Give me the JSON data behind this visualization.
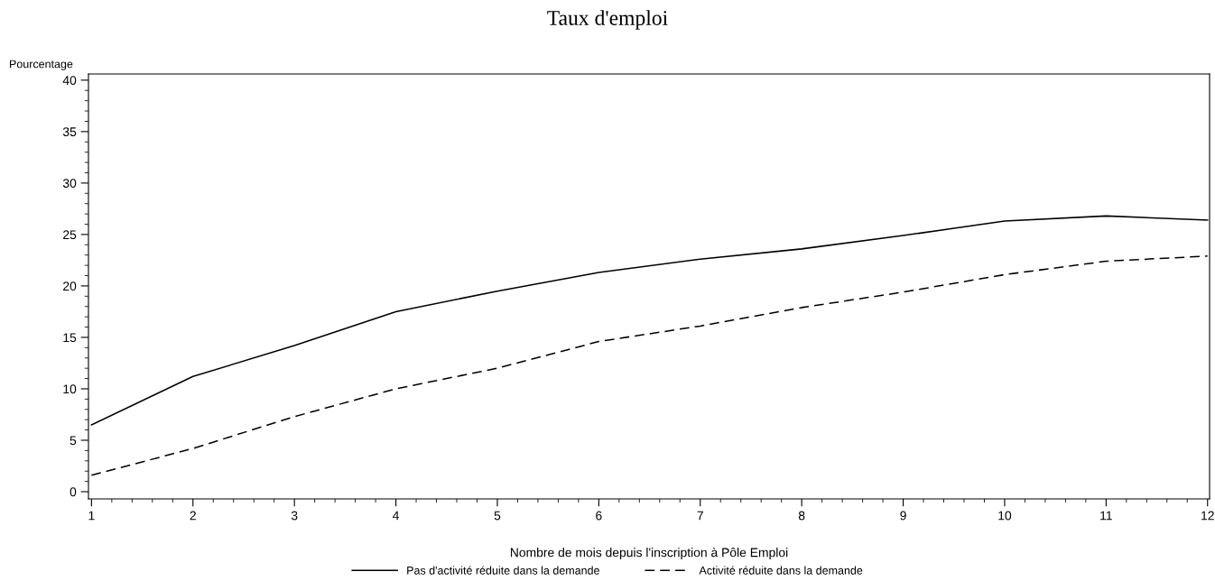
{
  "chart_data": {
    "type": "line",
    "title": "Taux d'emploi",
    "xlabel": "Nombre de mois depuis l'inscription à Pôle Emploi",
    "ylabel": "Pourcentage",
    "x": [
      1,
      2,
      3,
      4,
      5,
      6,
      7,
      8,
      9,
      10,
      11,
      12
    ],
    "series": [
      {
        "name": "Pas d'activité réduite dans la demande",
        "color": "#000000",
        "line_style": "solid",
        "values": [
          6.5,
          11.2,
          14.2,
          17.5,
          19.5,
          21.3,
          22.6,
          23.6,
          24.9,
          26.3,
          26.8,
          26.4
        ]
      },
      {
        "name": "Activité réduite dans la demande",
        "color": "#000000",
        "line_style": "dashed",
        "values": [
          1.6,
          4.2,
          7.3,
          10.0,
          12.0,
          14.6,
          16.1,
          17.9,
          19.4,
          21.1,
          22.4,
          22.9
        ]
      }
    ],
    "xlim": [
      0.97,
      12.02
    ],
    "xticks": [
      1,
      2,
      3,
      4,
      5,
      6,
      7,
      8,
      9,
      10,
      11,
      12
    ],
    "ylim": [
      -0.7,
      40.6
    ],
    "yticks": [
      0,
      5,
      10,
      15,
      20,
      25,
      30,
      35,
      40
    ],
    "grid": false,
    "legend": "bottom",
    "marker": "none"
  }
}
